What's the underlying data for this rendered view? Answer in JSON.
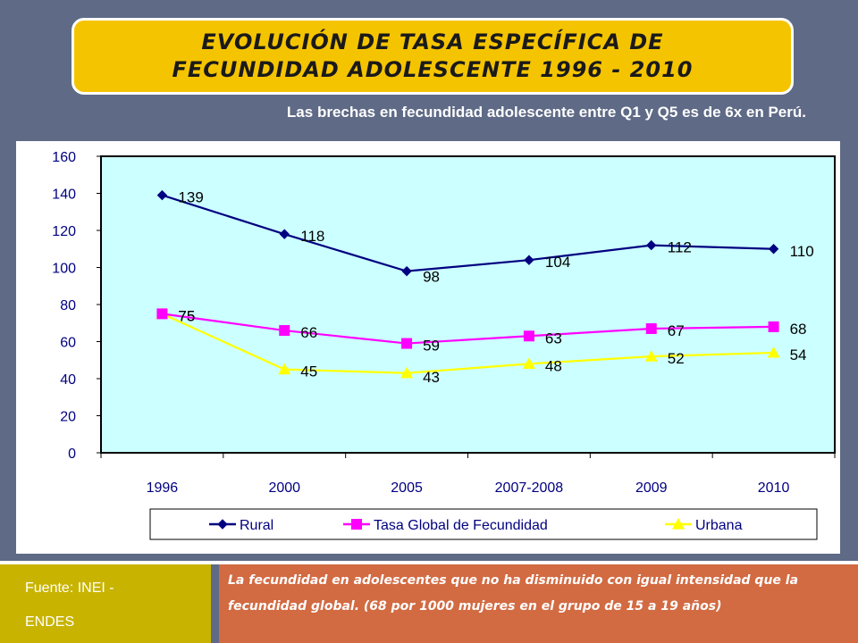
{
  "title": {
    "line1": "EVOLUCIÓN  DE TASA ESPECÍFICA DE",
    "line2": "FECUNDIDAD ADOLESCENTE 1996 - 2010"
  },
  "subtitle": "Las brechas en fecundidad adolescente entre Q1 y Q5 es de  6x en Perú.",
  "footer": {
    "source_line1": "Fuente: INEI -",
    "source_line2": "ENDES",
    "note": "La fecundidad en adolescentes que no ha disminuido con igual intensidad que la fecundidad global. (68 por 1000 mujeres en el grupo de 15 a 19 años)"
  },
  "chart_data": {
    "type": "line",
    "categories": [
      "1996",
      "2000",
      "2005",
      "2007-2008",
      "2009",
      "2010"
    ],
    "series": [
      {
        "name": "Rural",
        "values": [
          139,
          118,
          98,
          104,
          112,
          110
        ],
        "color": "#000080",
        "marker": "diamond"
      },
      {
        "name": "Tasa Global de Fecundidad",
        "values": [
          75,
          66,
          59,
          63,
          67,
          68
        ],
        "color": "#ff00ff",
        "marker": "square"
      },
      {
        "name": "Urbana",
        "values": [
          75,
          45,
          43,
          48,
          52,
          54
        ],
        "color": "#ffff00",
        "marker": "triangle"
      }
    ],
    "ylim": [
      0,
      160
    ],
    "yticks": [
      0,
      20,
      40,
      60,
      80,
      100,
      120,
      140,
      160
    ],
    "plot_background": "#ccffff",
    "legend_position": "bottom",
    "grid": false
  }
}
